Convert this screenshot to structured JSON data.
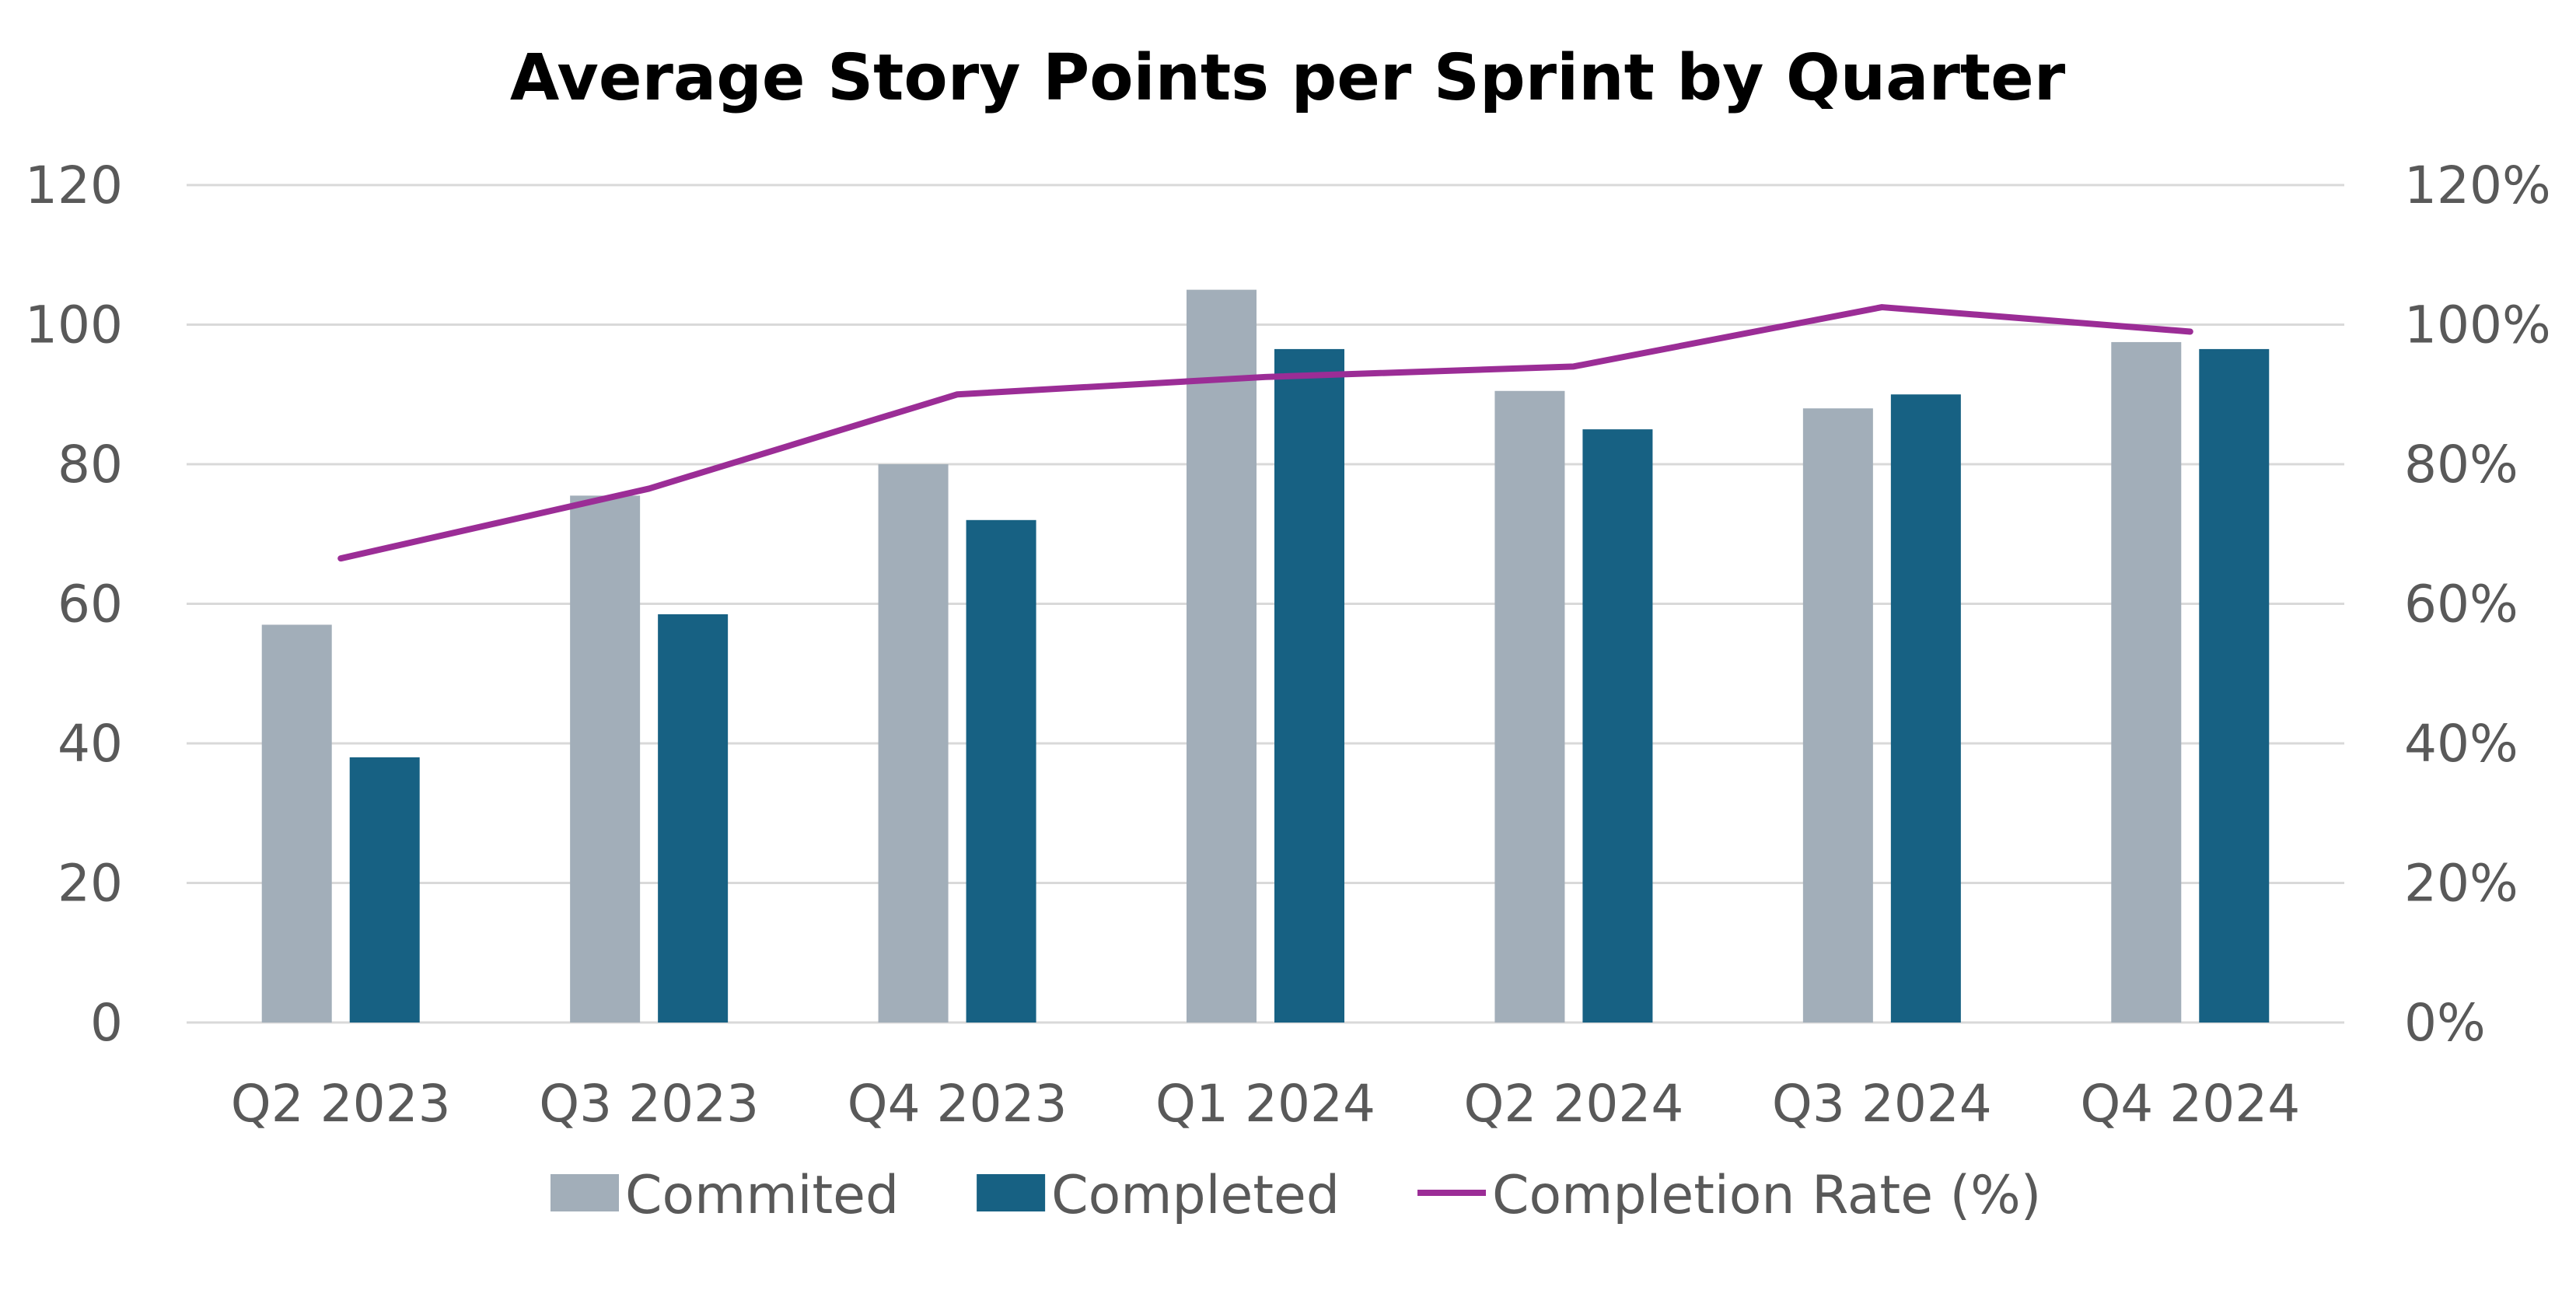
{
  "chart_data": {
    "type": "bar",
    "title": "Average Story Points per Sprint by Quarter",
    "categories": [
      "Q2 2023",
      "Q3 2023",
      "Q4 2023",
      "Q1 2024",
      "Q2 2024",
      "Q3 2024",
      "Q4 2024"
    ],
    "series": [
      {
        "name": "Commited",
        "type": "bar",
        "axis": "left",
        "color": "#a2aeb9",
        "values": [
          57,
          75.5,
          80,
          105,
          90.5,
          88,
          97.5
        ]
      },
      {
        "name": "Completed",
        "type": "bar",
        "axis": "left",
        "color": "#176183",
        "values": [
          38,
          58.5,
          72,
          96.5,
          85,
          90,
          96.5
        ]
      },
      {
        "name": "Completion Rate (%)",
        "type": "line",
        "axis": "right",
        "color": "#9b2d96",
        "values": [
          66.5,
          76.5,
          90,
          92.5,
          94,
          102.5,
          99
        ]
      }
    ],
    "ylim_left": [
      0,
      120
    ],
    "yticks_left": [
      "0",
      "20",
      "40",
      "60",
      "80",
      "100",
      "120"
    ],
    "ylim_right": [
      0,
      120
    ],
    "yticks_right": [
      "0%",
      "20%",
      "40%",
      "60%",
      "80%",
      "100%",
      "120%"
    ],
    "grid": true,
    "legend_position": "bottom"
  }
}
